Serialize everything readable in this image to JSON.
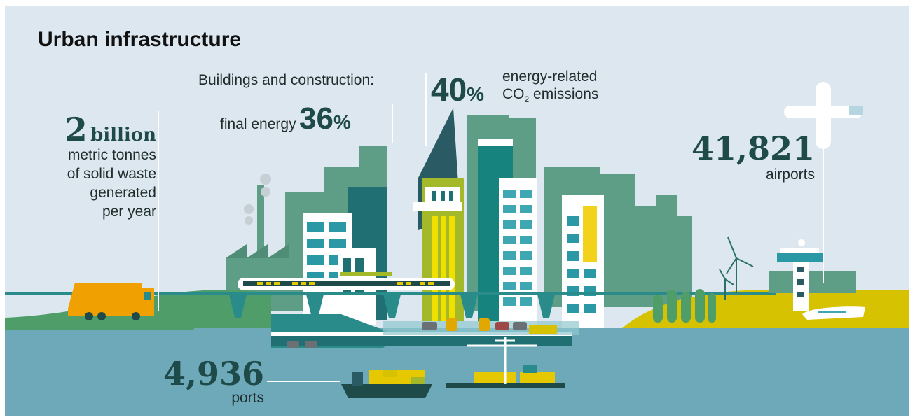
{
  "title": "Urban infrastructure",
  "waste": {
    "value": "2",
    "unit": "billion",
    "lines": [
      "metric tonnes",
      "of solid waste",
      "generated",
      "per year"
    ]
  },
  "buildings": {
    "heading": "Buildings and construction:",
    "final_energy_label": "final energy",
    "final_energy_value": "36",
    "emissions_value": "40",
    "percent": "%",
    "emissions_line1": "energy-related",
    "emissions_co": "CO",
    "emissions_sub": "2",
    "emissions_rest": " emissions"
  },
  "airports": {
    "value": "41,821",
    "label": "airports"
  },
  "ports": {
    "value": "4,936",
    "label": "ports"
  },
  "colors": {
    "background": "#dde7ef",
    "water": "#6da9b8",
    "dark_teal": "#1f4a4a",
    "green": "#3f9a6e",
    "yellow": "#d9c400",
    "orange": "#f0a000"
  }
}
